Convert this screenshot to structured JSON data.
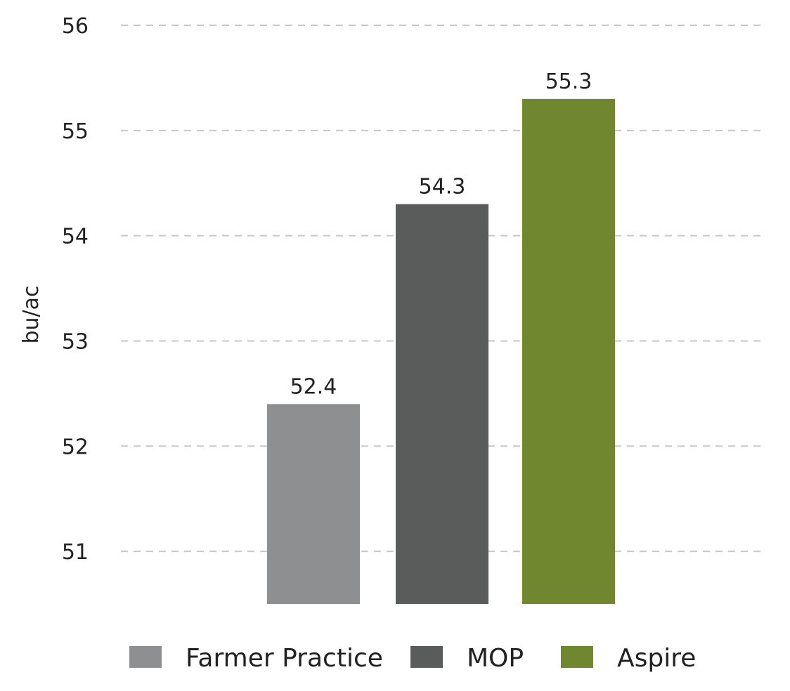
{
  "chart_data": {
    "type": "bar",
    "categories": [
      "Farmer Practice",
      "MOP",
      "Aspire"
    ],
    "values": [
      52.4,
      54.3,
      55.3
    ],
    "data_labels": [
      "52.4",
      "54.3",
      "55.3"
    ],
    "colors": [
      "#8e8f91",
      "#5a5b5b",
      "#70872f"
    ],
    "title": "",
    "xlabel": "",
    "ylabel": "bu/ac",
    "ylim": [
      50.5,
      56
    ],
    "yticks": [
      51,
      52,
      53,
      54,
      55,
      56
    ],
    "ytick_labels": [
      "51",
      "52",
      "53",
      "54",
      "55",
      "56"
    ],
    "grid": true,
    "legend": {
      "position": "bottom",
      "entries": [
        "Farmer Practice",
        "MOP",
        "Aspire"
      ]
    }
  }
}
